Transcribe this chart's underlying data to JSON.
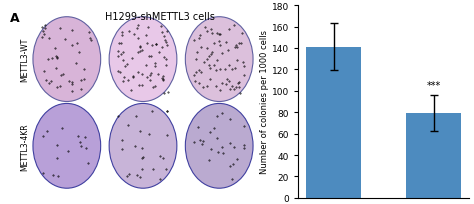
{
  "categories": [
    "METTL3-WT",
    "METTL3-4KR"
  ],
  "values": [
    141,
    79
  ],
  "errors_upper": [
    22,
    17
  ],
  "errors_lower": [
    22,
    17
  ],
  "bar_color": "#4d8bbf",
  "ylim": [
    0,
    180
  ],
  "yticks": [
    0,
    20,
    40,
    60,
    80,
    100,
    120,
    140,
    160,
    180
  ],
  "ylabel": "Number of colonies per 1000 cells",
  "title_left": "H1299-shMETTL3 cells",
  "label_A": "A",
  "annotation": "***",
  "bar_width": 0.55,
  "edge_color": "none",
  "background_color": "#ffffff",
  "label_WT": "METTL3-WT",
  "label_4KR": "METTL3-4KR",
  "row_labels": [
    "METTL3-WT",
    "METTL3-4KR"
  ]
}
